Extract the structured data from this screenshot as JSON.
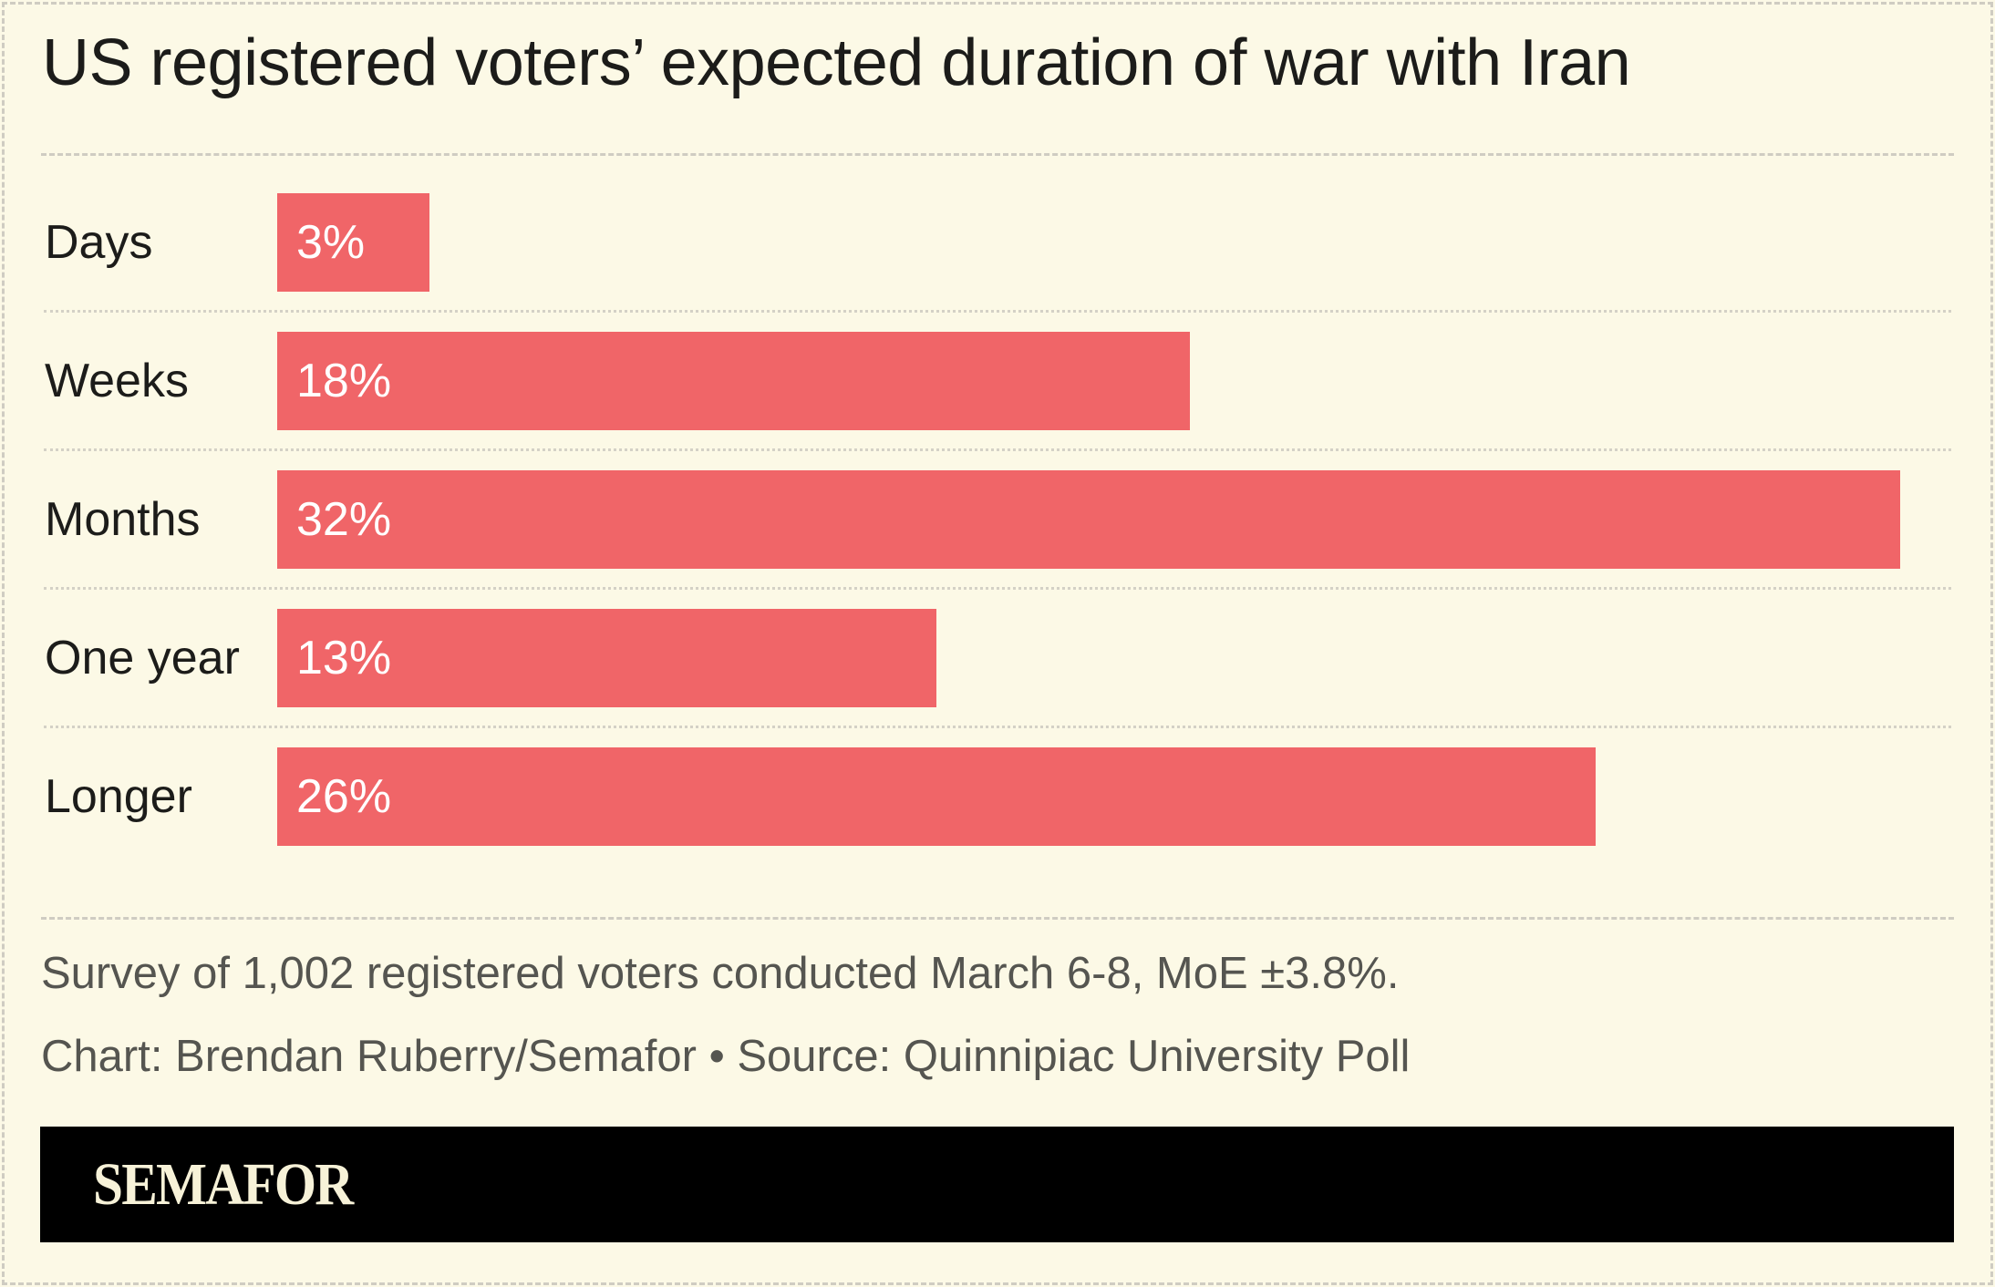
{
  "chart_data": {
    "type": "bar",
    "orientation": "horizontal",
    "title": "US registered voters’ expected duration of war with Iran",
    "categories": [
      "Days",
      "Weeks",
      "Months",
      "One year",
      "Longer"
    ],
    "values": [
      3,
      18,
      32,
      13,
      26
    ],
    "value_labels": [
      "3%",
      "18%",
      "32%",
      "13%",
      "26%"
    ],
    "unit": "%",
    "xlim": [
      0,
      32
    ],
    "grid": false,
    "bar_color": "#f06568"
  },
  "notes": {
    "survey": "Survey of 1,002 registered voters conducted March 6-8, MoE ±3.8%.",
    "credit": "Chart: Brendan Ruberry/Semafor • Source: Quinnipiac University Poll"
  },
  "brand": {
    "logo": "SEMAFOR",
    "band_color": "#000000",
    "background": "#fcf9e6"
  }
}
